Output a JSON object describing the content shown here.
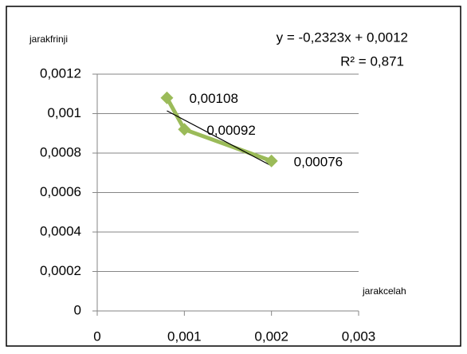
{
  "chart_data": {
    "type": "scatter",
    "y_label": "jarakfrinji",
    "x_label": "jarakcelah",
    "series": [
      {
        "color": "#9bbb59",
        "x": [
          0.0008,
          0.001,
          0.002
        ],
        "values": [
          0.00108,
          0.00092,
          0.00076
        ],
        "value_labels": [
          "0,00108",
          "0,00092",
          "0,00076"
        ]
      }
    ],
    "trendline": {
      "slope": -0.2323,
      "intercept": 0.0012,
      "color": "#000000",
      "equation": "y = -0,2323x + 0,0012",
      "r_squared": "R² = 0,871"
    },
    "xlim": [
      0,
      0.003
    ],
    "xticks": [
      0,
      {
        "value": 0.001,
        "label": "0,001"
      },
      {
        "value": 0.002,
        "label": "0,002"
      },
      {
        "value": 0.003,
        "label": "0,003"
      }
    ],
    "ylim": [
      0,
      0.0012
    ],
    "yticks": [
      0,
      {
        "value": 0.0002,
        "label": "0,0002"
      },
      {
        "value": 0.0004,
        "label": "0,0004"
      },
      {
        "value": 0.0006,
        "label": "0,0006"
      },
      {
        "value": 0.0008,
        "label": "0,0008"
      },
      {
        "value": 0.001,
        "label": "0,001"
      },
      {
        "value": 0.0012,
        "label": "0,0012"
      }
    ],
    "grid": true
  }
}
